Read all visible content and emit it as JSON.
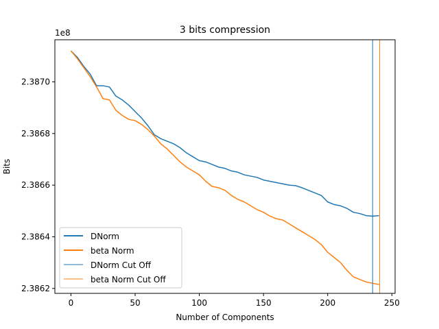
{
  "chart_data": {
    "type": "line",
    "title": "3 bits compression",
    "xlabel": "Number of Components",
    "ylabel": "Bits",
    "y_offset_text": "1e8",
    "y_scale_factor": 100000000,
    "xlim": [
      -12.5,
      252.5
    ],
    "ylim": [
      238.6181,
      238.7163
    ],
    "x_ticks": [
      0,
      50,
      100,
      150,
      200,
      250
    ],
    "x_tick_labels": [
      "0",
      "50",
      "100",
      "150",
      "200",
      "250"
    ],
    "y_ticks": [
      238.62,
      238.64,
      238.66,
      238.68,
      238.7
    ],
    "y_tick_labels": [
      "2.3862",
      "2.3864",
      "2.3866",
      "2.3868",
      "2.3870"
    ],
    "legend": {
      "position": "lower-left",
      "entries": [
        "DNorm",
        "beta Norm",
        "DNorm Cut Off",
        "beta Norm Cut Off"
      ]
    },
    "series": [
      {
        "name": "DNorm",
        "color": "#1f77b4",
        "x": [
          0,
          5,
          10,
          15,
          20,
          25,
          30,
          35,
          40,
          45,
          50,
          55,
          60,
          65,
          70,
          75,
          80,
          85,
          90,
          95,
          100,
          105,
          110,
          115,
          120,
          125,
          130,
          135,
          140,
          145,
          150,
          155,
          160,
          165,
          170,
          175,
          180,
          185,
          190,
          195,
          200,
          205,
          210,
          215,
          220,
          225,
          230,
          235,
          240
        ],
        "y": [
          238.712,
          238.7095,
          238.706,
          238.703,
          238.6985,
          238.6985,
          238.698,
          238.6945,
          238.693,
          238.691,
          238.6885,
          238.686,
          238.683,
          238.6795,
          238.678,
          238.677,
          238.676,
          238.6745,
          238.6725,
          238.671,
          238.6695,
          238.669,
          238.668,
          238.667,
          238.6665,
          238.6655,
          238.665,
          238.664,
          238.6635,
          238.663,
          238.662,
          238.6615,
          238.661,
          238.6605,
          238.66,
          238.6598,
          238.659,
          238.658,
          238.657,
          238.656,
          238.6535,
          238.6525,
          238.652,
          238.651,
          238.6495,
          238.649,
          238.6482,
          238.648,
          238.6482
        ]
      },
      {
        "name": "beta Norm",
        "color": "#ff7f0e",
        "x": [
          0,
          5,
          10,
          15,
          20,
          25,
          30,
          35,
          40,
          45,
          50,
          55,
          60,
          65,
          70,
          75,
          80,
          85,
          90,
          95,
          100,
          105,
          110,
          115,
          120,
          125,
          130,
          135,
          140,
          145,
          150,
          155,
          160,
          165,
          170,
          175,
          180,
          185,
          190,
          195,
          200,
          205,
          210,
          215,
          220,
          225,
          230,
          235,
          240
        ],
        "y": [
          238.712,
          238.709,
          238.7055,
          238.702,
          238.698,
          238.6935,
          238.693,
          238.689,
          238.687,
          238.6855,
          238.685,
          238.6835,
          238.6815,
          238.679,
          238.676,
          238.674,
          238.6715,
          238.669,
          238.667,
          238.6655,
          238.664,
          238.6615,
          238.6595,
          238.659,
          238.658,
          238.656,
          238.6545,
          238.6535,
          238.652,
          238.6505,
          238.6495,
          238.648,
          238.647,
          238.6465,
          238.645,
          238.6435,
          238.642,
          238.6405,
          238.639,
          238.637,
          238.634,
          238.632,
          238.63,
          238.627,
          238.6245,
          238.6235,
          238.6225,
          238.622,
          238.6215
        ]
      }
    ],
    "cutoffs": [
      {
        "name": "DNorm Cut Off",
        "x": 235,
        "color": "#1f77b4"
      },
      {
        "name": "beta Norm Cut Off",
        "x": 240.5,
        "color": "#ff7f0e"
      }
    ]
  }
}
